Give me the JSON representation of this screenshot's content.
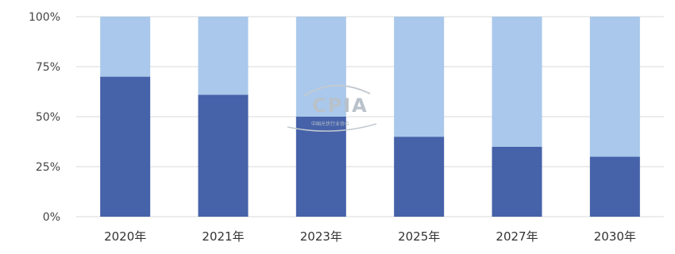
{
  "chart_data": {
    "type": "bar",
    "stacked": true,
    "categories": [
      "2020年",
      "2021年",
      "2023年",
      "2025年",
      "2027年",
      "2030年"
    ],
    "series": [
      {
        "values": [
          70,
          61,
          50,
          40,
          35,
          30
        ],
        "color": "#4662a9"
      },
      {
        "values": [
          30,
          39,
          50,
          60,
          65,
          70
        ],
        "color": "#a9c8eb"
      }
    ],
    "ylim": [
      0,
      100
    ],
    "y_ticks": [
      "0%",
      "25%",
      "50%",
      "75%",
      "100%"
    ],
    "y_tick_values": [
      0,
      25,
      50,
      75,
      100
    ],
    "grid": true,
    "gridColor": "#d9d9d9"
  },
  "watermark": {
    "title": "CPIA",
    "subtitle": "中国光伏行业协会"
  }
}
